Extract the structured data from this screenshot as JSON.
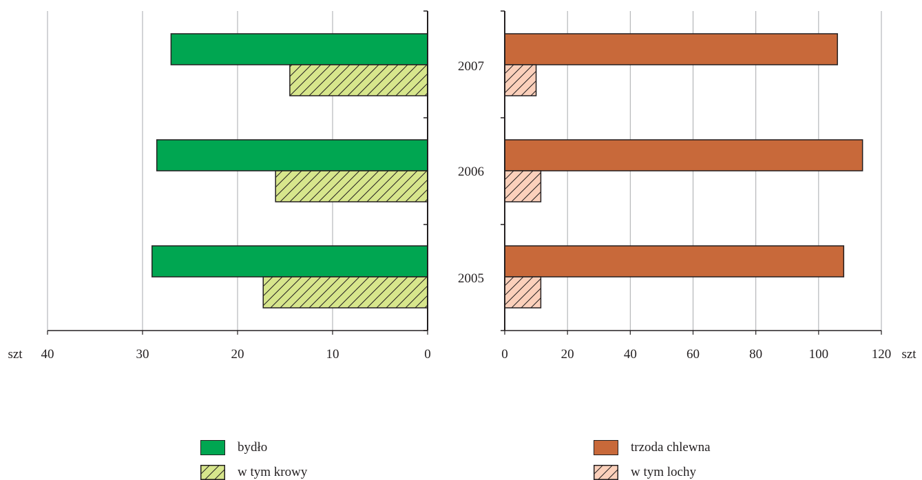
{
  "chart_data": {
    "type": "bar",
    "orientation": "horizontal",
    "categories": [
      "2007",
      "2006",
      "2005"
    ],
    "unit_label": "szt",
    "grid": true,
    "panels": [
      {
        "side": "left",
        "direction": "reversed",
        "xlim": [
          0,
          40
        ],
        "ticks": [
          "40",
          "30",
          "20",
          "10",
          "0"
        ],
        "series": [
          {
            "name": "bydło",
            "values": [
              27.0,
              28.5,
              29.0
            ],
            "color": "#00a651",
            "pattern": "solid"
          },
          {
            "name": "w tym krowy",
            "values": [
              14.5,
              16.0,
              17.3
            ],
            "color": "#d7e68c",
            "pattern": "hatch"
          }
        ]
      },
      {
        "side": "right",
        "direction": "normal",
        "xlim": [
          0,
          120
        ],
        "ticks": [
          "0",
          "20",
          "40",
          "60",
          "80",
          "100",
          "120"
        ],
        "series": [
          {
            "name": "trzoda chlewna",
            "values": [
              106,
              114,
              108
            ],
            "color": "#c8693a",
            "pattern": "solid"
          },
          {
            "name": "w tym lochy",
            "values": [
              10,
              11.5,
              11.5
            ],
            "color": "#fbd0bb",
            "pattern": "hatch"
          }
        ]
      }
    ]
  }
}
